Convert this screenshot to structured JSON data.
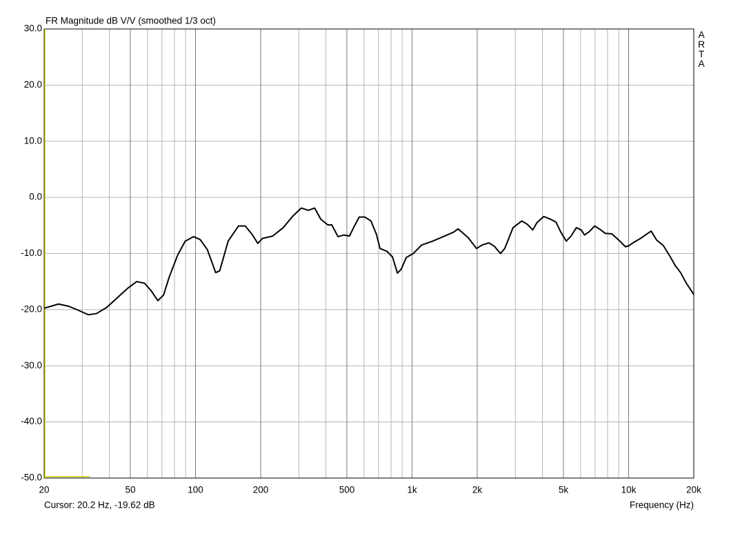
{
  "chart_data": {
    "type": "line",
    "title": "FR Magnitude dB V/V (smoothed 1/3 oct)",
    "x_label": "Frequency (Hz)",
    "cursor": "Cursor: 20.2 Hz, -19.62 dB",
    "logo": "ARTA",
    "xscale": "log",
    "xlim": [
      20,
      20000
    ],
    "ylim": [
      -50,
      30
    ],
    "grid": true,
    "xticks": [
      20,
      50,
      100,
      200,
      500,
      {
        "value": 1000,
        "label": "1k"
      },
      {
        "value": 2000,
        "label": "2k"
      },
      {
        "value": 5000,
        "label": "5k"
      },
      {
        "value": 10000,
        "label": "10k"
      },
      {
        "value": 20000,
        "label": "20k"
      }
    ],
    "xminor": [
      30,
      40,
      60,
      70,
      80,
      90,
      300,
      400,
      600,
      700,
      800,
      900,
      3000,
      4000,
      6000,
      7000,
      8000,
      9000
    ],
    "yticks": [
      {
        "value": -50,
        "label": "-50.0"
      },
      {
        "value": -40,
        "label": "-40.0"
      },
      {
        "value": -30,
        "label": "-30.0"
      },
      {
        "value": -20,
        "label": "-20.0"
      },
      {
        "value": -10,
        "label": "-10.0"
      },
      {
        "value": 0,
        "label": "0.0"
      },
      {
        "value": 10,
        "label": "10.0"
      },
      {
        "value": 20,
        "label": "20.0"
      },
      {
        "value": 30,
        "label": "30.0"
      }
    ],
    "series": [
      {
        "name": "FR",
        "color": "#000000",
        "x": [
          20,
          23.3,
          26,
          29.1,
          32,
          34.9,
          38.9,
          43.5,
          48.6,
          53.5,
          58.2,
          62.6,
          67,
          71.2,
          75.6,
          82.7,
          89.6,
          97.9,
          105,
          113.4,
          123.9,
          129.3,
          141.5,
          157.8,
          169.8,
          182.6,
          193.9,
          204,
          227,
          254,
          282,
          308,
          332,
          355,
          379,
          408,
          426,
          455,
          484,
          514,
          537,
          570,
          605,
          646,
          685,
          711,
          765,
          812,
          856,
          891,
          941,
          1013,
          1106,
          1245,
          1410,
          1555,
          1632,
          1819,
          1985,
          2103,
          2260,
          2398,
          2561,
          2680,
          2925,
          3212,
          3406,
          3609,
          3773,
          4058,
          4360,
          4620,
          4864,
          5154,
          5421,
          5740,
          6041,
          6259,
          6581,
          6972,
          7446,
          7787,
          8372,
          9000,
          9676,
          10045,
          10571,
          11370,
          12070,
          12700,
          13470,
          14480,
          15580,
          16390,
          17380,
          18420,
          20000
        ],
        "values": [
          -19.75,
          -19.0,
          -19.4,
          -20.2,
          -20.9,
          -20.7,
          -19.6,
          -17.9,
          -16.2,
          -15.0,
          -15.3,
          -16.7,
          -18.4,
          -17.4,
          -14.2,
          -10.3,
          -7.8,
          -7.0,
          -7.5,
          -9.3,
          -13.4,
          -13.1,
          -7.8,
          -5.1,
          -5.1,
          -6.6,
          -8.2,
          -7.3,
          -6.9,
          -5.4,
          -3.3,
          -1.9,
          -2.3,
          -1.9,
          -3.9,
          -4.9,
          -4.9,
          -7.0,
          -6.7,
          -6.9,
          -5.4,
          -3.5,
          -3.5,
          -4.2,
          -6.6,
          -9.1,
          -9.6,
          -10.6,
          -13.5,
          -12.8,
          -10.7,
          -10.0,
          -8.5,
          -7.8,
          -6.9,
          -6.2,
          -5.6,
          -7.2,
          -9.1,
          -8.5,
          -8.1,
          -8.7,
          -10.0,
          -9.1,
          -5.4,
          -4.2,
          -4.8,
          -5.8,
          -4.5,
          -3.4,
          -3.9,
          -4.4,
          -6.2,
          -7.8,
          -6.9,
          -5.4,
          -5.8,
          -6.7,
          -6.1,
          -5.1,
          -5.8,
          -6.4,
          -6.5,
          -7.6,
          -8.8,
          -8.6,
          -8.0,
          -7.3,
          -6.6,
          -6.0,
          -7.6,
          -8.6,
          -10.6,
          -12.1,
          -13.4,
          -15.2,
          -17.3
        ]
      }
    ]
  }
}
